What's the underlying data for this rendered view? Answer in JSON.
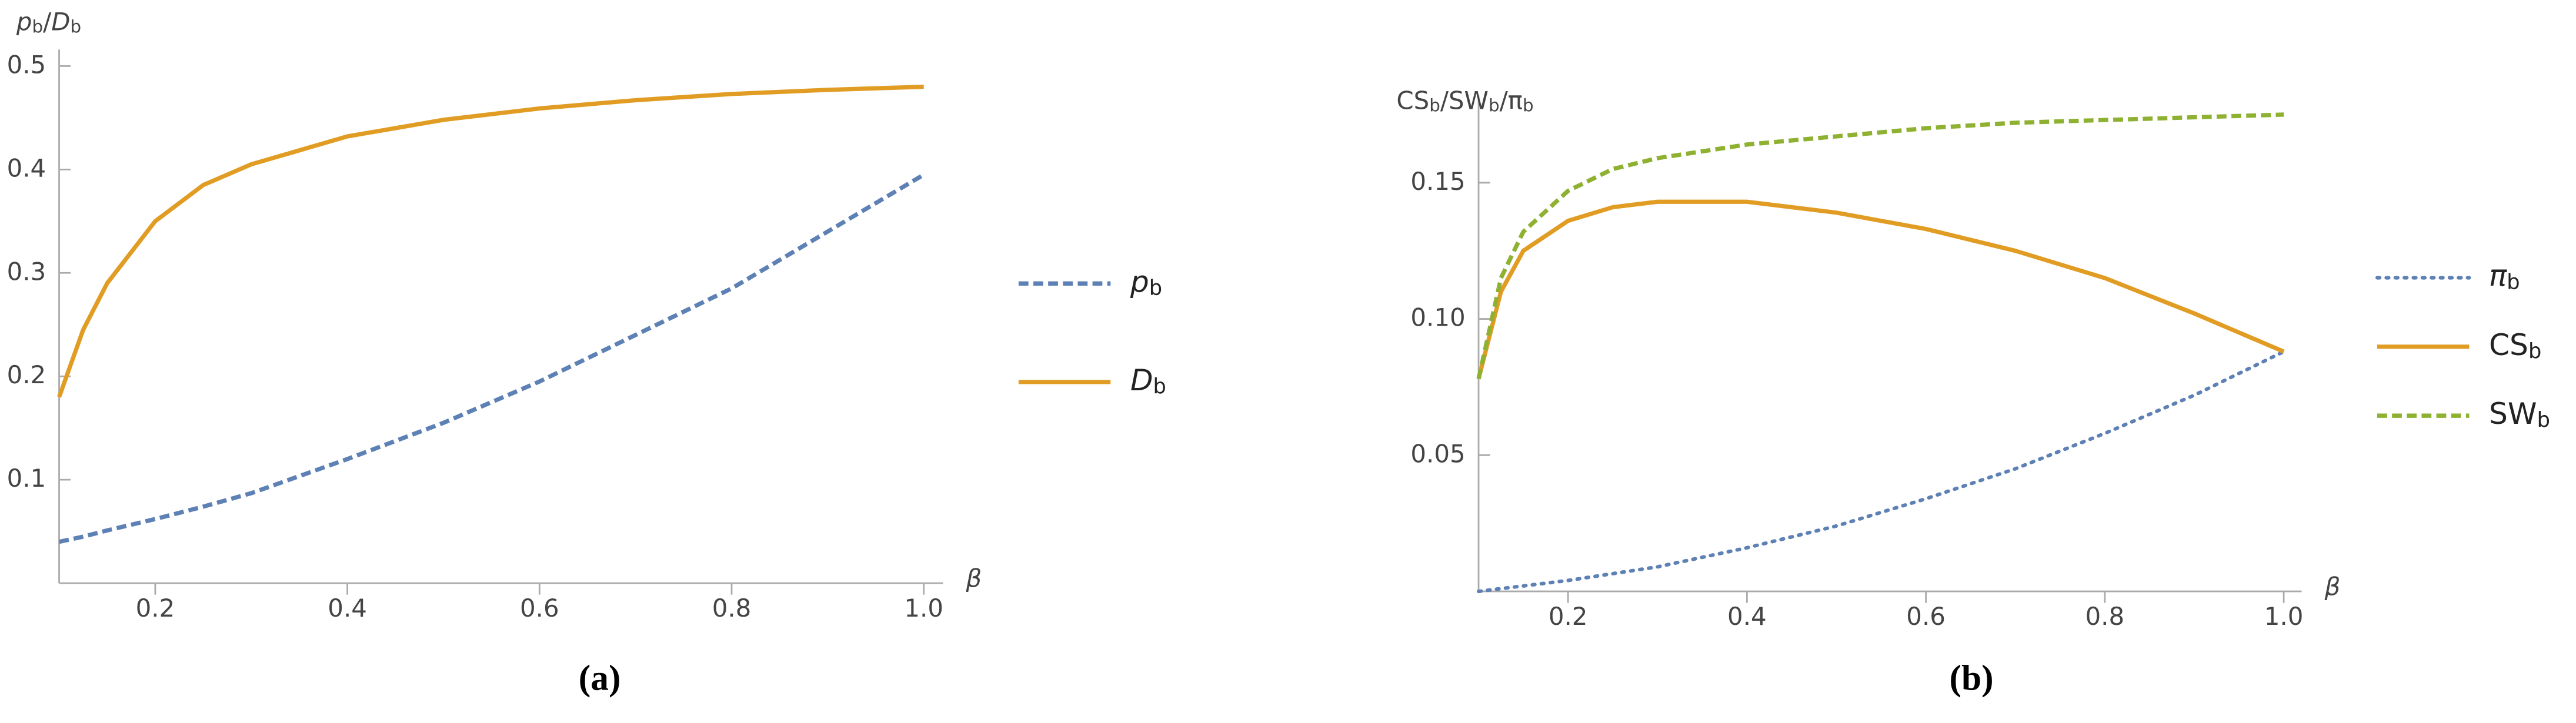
{
  "chart_data": [
    {
      "type": "line",
      "caption": "(a)",
      "y_label": "pb/Db",
      "x_label": "β",
      "x": [
        0.1,
        0.125,
        0.15,
        0.2,
        0.25,
        0.3,
        0.4,
        0.5,
        0.6,
        0.7,
        0.8,
        0.9,
        1.0
      ],
      "xlim": [
        0.1,
        1.02
      ],
      "ylim": [
        0,
        0.516
      ],
      "xticks": [
        0.2,
        0.4,
        0.6,
        0.8,
        {
          "value": 1,
          "label": "1.0"
        }
      ],
      "yticks": [
        0.1,
        0.2,
        0.3,
        0.4,
        0.5
      ],
      "legend": "right",
      "series": [
        {
          "name": "pb",
          "color": "#5e81b5",
          "style": "dashed",
          "values": [
            0.04,
            0.045,
            0.051,
            0.062,
            0.074,
            0.087,
            0.12,
            0.155,
            0.195,
            0.24,
            0.285,
            0.34,
            0.395
          ]
        },
        {
          "name": "Db",
          "color": "#e19c24",
          "style": "solid",
          "values": [
            0.18,
            0.245,
            0.29,
            0.35,
            0.385,
            0.405,
            0.432,
            0.448,
            0.459,
            0.467,
            0.473,
            0.477,
            0.48
          ]
        }
      ]
    },
    {
      "type": "line",
      "caption": "(b)",
      "y_label": "CSb/SWb/πb",
      "x_label": "β",
      "x": [
        0.1,
        0.125,
        0.15,
        0.2,
        0.25,
        0.3,
        0.4,
        0.5,
        0.6,
        0.7,
        0.8,
        0.9,
        1.0
      ],
      "xlim": [
        0.1,
        1.02
      ],
      "ylim": [
        0,
        0.182
      ],
      "xticks": [
        0.2,
        0.4,
        0.6,
        0.8,
        {
          "value": 1,
          "label": "1.0"
        }
      ],
      "yticks": [
        0.05,
        {
          "value": 0.1,
          "label": "0.10"
        },
        0.15
      ],
      "legend": "right",
      "series": [
        {
          "name": "πb",
          "color": "#5e81b5",
          "style": "dotted",
          "values": [
            0.0,
            0.001,
            0.002,
            0.004,
            0.0065,
            0.009,
            0.016,
            0.024,
            0.034,
            0.045,
            0.058,
            0.072,
            0.088
          ]
        },
        {
          "name": "CSb",
          "color": "#e19c24",
          "style": "solid",
          "values": [
            0.078,
            0.11,
            0.125,
            0.136,
            0.141,
            0.143,
            0.143,
            0.139,
            0.133,
            0.125,
            0.115,
            0.102,
            0.088
          ]
        },
        {
          "name": "SWb",
          "color": "#8fb131",
          "style": "dashed",
          "values": [
            0.078,
            0.115,
            0.132,
            0.147,
            0.155,
            0.159,
            0.164,
            0.167,
            0.17,
            0.172,
            0.173,
            0.174,
            0.175
          ]
        }
      ]
    }
  ]
}
